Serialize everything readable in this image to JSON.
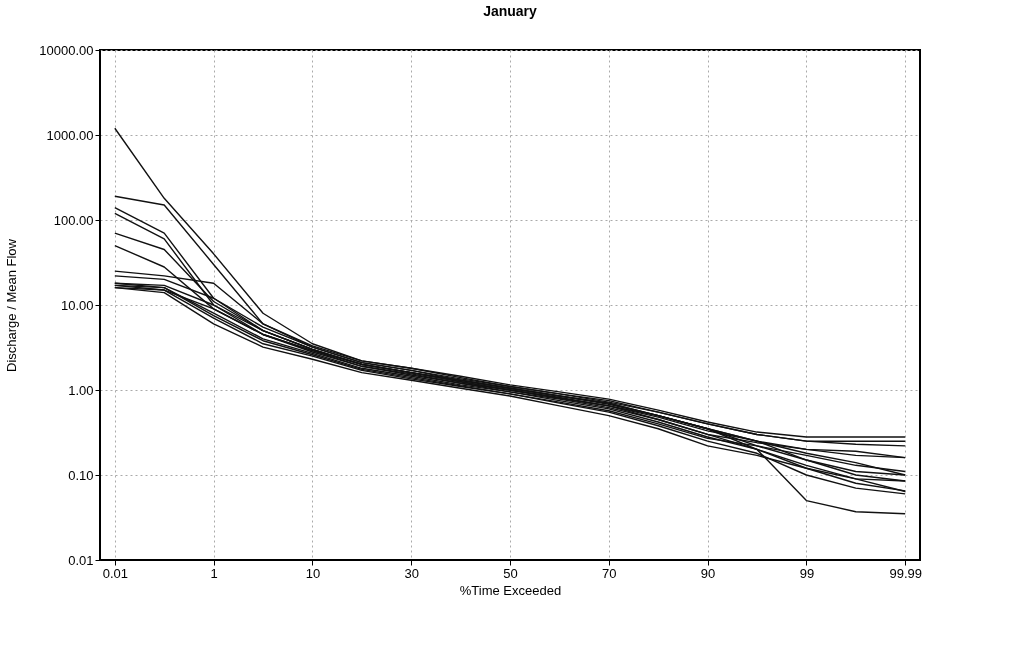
{
  "chart_data": {
    "type": "line",
    "title": "January",
    "xlabel": "%Time Exceeded",
    "ylabel": "Discharge / Mean Flow",
    "categories": [
      "0.01",
      null,
      "1",
      null,
      "10",
      null,
      "30",
      null,
      "50",
      null,
      "70",
      null,
      "90",
      null,
      "99",
      null,
      "99.99"
    ],
    "log": "y",
    "ylim": [
      0.01,
      10000
    ],
    "yticks": [
      {
        "value": 0.01,
        "label": "0.01"
      },
      {
        "value": 0.1,
        "label": "0.10"
      },
      {
        "value": 1,
        "label": "1.00"
      },
      {
        "value": 10,
        "label": "10.00"
      },
      {
        "value": 100,
        "label": "100.00"
      },
      {
        "value": 1000,
        "label": "1000.00"
      },
      {
        "value": 10000,
        "label": "10000.00"
      }
    ],
    "grid": true,
    "legend": false,
    "marker": "none",
    "line_style": "solid",
    "series": [
      {
        "color": "#111111",
        "values": [
          1200,
          180,
          40,
          8,
          3.5,
          2.2,
          1.8,
          1.4,
          1.1,
          0.9,
          0.75,
          0.55,
          0.4,
          0.3,
          0.25,
          0.25,
          0.25
        ]
      },
      {
        "color": "#111111",
        "values": [
          190,
          150,
          30,
          6,
          3.2,
          2.1,
          1.7,
          1.3,
          1.05,
          0.85,
          0.7,
          0.5,
          0.35,
          0.2,
          0.05,
          0.037,
          0.035
        ]
      },
      {
        "color": "#111111",
        "values": [
          140,
          70,
          12,
          5,
          3,
          2,
          1.6,
          1.25,
          1,
          0.8,
          0.65,
          0.5,
          0.35,
          0.25,
          0.15,
          0.1,
          0.085
        ]
      },
      {
        "color": "#111111",
        "values": [
          120,
          60,
          10,
          4.5,
          2.8,
          1.9,
          1.5,
          1.2,
          0.95,
          0.78,
          0.62,
          0.45,
          0.3,
          0.2,
          0.12,
          0.08,
          0.065
        ]
      },
      {
        "color": "#111111",
        "values": [
          70,
          45,
          11,
          5,
          3,
          2,
          1.6,
          1.3,
          1.05,
          0.85,
          0.68,
          0.5,
          0.35,
          0.22,
          0.15,
          0.11,
          0.1
        ]
      },
      {
        "color": "#111111",
        "values": [
          50,
          28,
          9,
          4.5,
          2.9,
          1.9,
          1.55,
          1.2,
          1,
          0.82,
          0.65,
          0.48,
          0.33,
          0.25,
          0.2,
          0.17,
          0.16
        ]
      },
      {
        "color": "#111111",
        "values": [
          25,
          22,
          18,
          6,
          3.3,
          2.2,
          1.8,
          1.45,
          1.15,
          0.95,
          0.78,
          0.58,
          0.42,
          0.32,
          0.28,
          0.28,
          0.28
        ]
      },
      {
        "color": "#111111",
        "values": [
          22,
          20,
          12,
          5.5,
          3.2,
          2.1,
          1.7,
          1.35,
          1.1,
          0.9,
          0.72,
          0.55,
          0.4,
          0.3,
          0.25,
          0.23,
          0.22
        ]
      },
      {
        "color": "#111111",
        "values": [
          18,
          17,
          10,
          5,
          3,
          2,
          1.6,
          1.3,
          1.05,
          0.85,
          0.7,
          0.5,
          0.35,
          0.25,
          0.18,
          0.14,
          0.1
        ]
      },
      {
        "color": "#111111",
        "values": [
          17,
          16,
          8,
          4,
          2.7,
          1.8,
          1.45,
          1.15,
          0.95,
          0.75,
          0.6,
          0.42,
          0.28,
          0.2,
          0.13,
          0.09,
          0.085
        ]
      },
      {
        "color": "#111111",
        "values": [
          16,
          15,
          7,
          3.5,
          2.5,
          1.7,
          1.35,
          1.1,
          0.9,
          0.7,
          0.55,
          0.38,
          0.25,
          0.18,
          0.1,
          0.07,
          0.06
        ]
      },
      {
        "color": "#111111",
        "values": [
          16,
          14,
          6,
          3.2,
          2.3,
          1.6,
          1.3,
          1.05,
          0.85,
          0.65,
          0.5,
          0.35,
          0.22,
          0.17,
          0.12,
          0.09,
          0.064
        ]
      },
      {
        "color": "#111111",
        "values": [
          17,
          15,
          9,
          4.5,
          2.9,
          2,
          1.6,
          1.25,
          1,
          0.8,
          0.65,
          0.45,
          0.3,
          0.24,
          0.2,
          0.19,
          0.16
        ]
      },
      {
        "color": "#111111",
        "values": [
          18,
          16,
          7.5,
          3.8,
          2.6,
          1.75,
          1.4,
          1.12,
          0.9,
          0.72,
          0.57,
          0.4,
          0.27,
          0.22,
          0.17,
          0.13,
          0.11
        ]
      }
    ]
  }
}
